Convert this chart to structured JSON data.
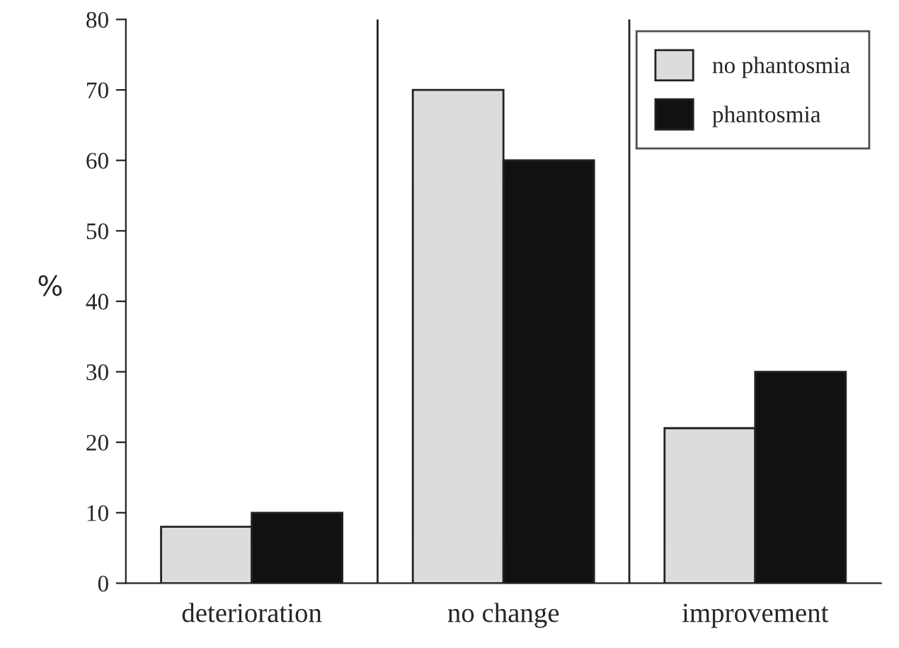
{
  "chart_data": {
    "type": "bar",
    "ylabel": "%",
    "categories": [
      "deterioration",
      "no change",
      "improvement"
    ],
    "series": [
      {
        "name": "no phantosmia",
        "color": "#dcdcdc",
        "values": [
          8,
          70,
          22
        ]
      },
      {
        "name": "phantosmia",
        "color": "#111111",
        "values": [
          10,
          60,
          30
        ]
      }
    ],
    "ylim": [
      0,
      80
    ],
    "yticks": [
      0,
      10,
      20,
      30,
      40,
      50,
      60,
      70,
      80
    ],
    "grid": "x",
    "legend": "top right"
  }
}
